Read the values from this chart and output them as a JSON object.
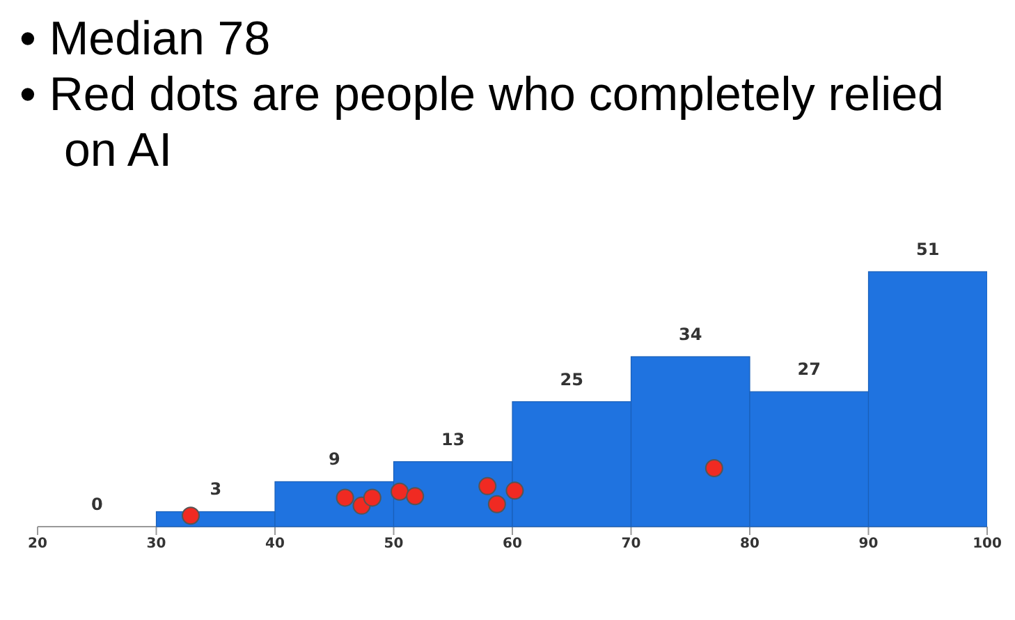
{
  "chart_data": {
    "type": "histogram",
    "annotations": [
      "• Median 78",
      "• Red dots are people who completely relied on AI"
    ],
    "bins": [
      20,
      30,
      40,
      50,
      60,
      70,
      80,
      90,
      100
    ],
    "values": [
      0,
      3,
      9,
      13,
      25,
      34,
      27,
      51
    ],
    "color": "#1f73e0",
    "value_labels": [
      "0",
      "3",
      "9",
      "13",
      "25",
      "34",
      "27",
      "51"
    ],
    "xlim": [
      20,
      100
    ],
    "xticks": [
      20,
      30,
      40,
      50,
      60,
      70,
      80,
      90,
      100
    ],
    "tick_labels": "x",
    "series": [
      {
        "type": "scatter",
        "color": "#f02a22",
        "marker": "circle",
        "x": [
          32.9,
          45.9,
          47.3,
          48.2,
          50.5,
          51.8,
          57.9,
          58.7,
          60.2,
          77.0
        ],
        "values": [
          2.2,
          5.8,
          4.2,
          5.8,
          7,
          6.1,
          8.1,
          4.5,
          7.2,
          11.7
        ]
      }
    ]
  }
}
